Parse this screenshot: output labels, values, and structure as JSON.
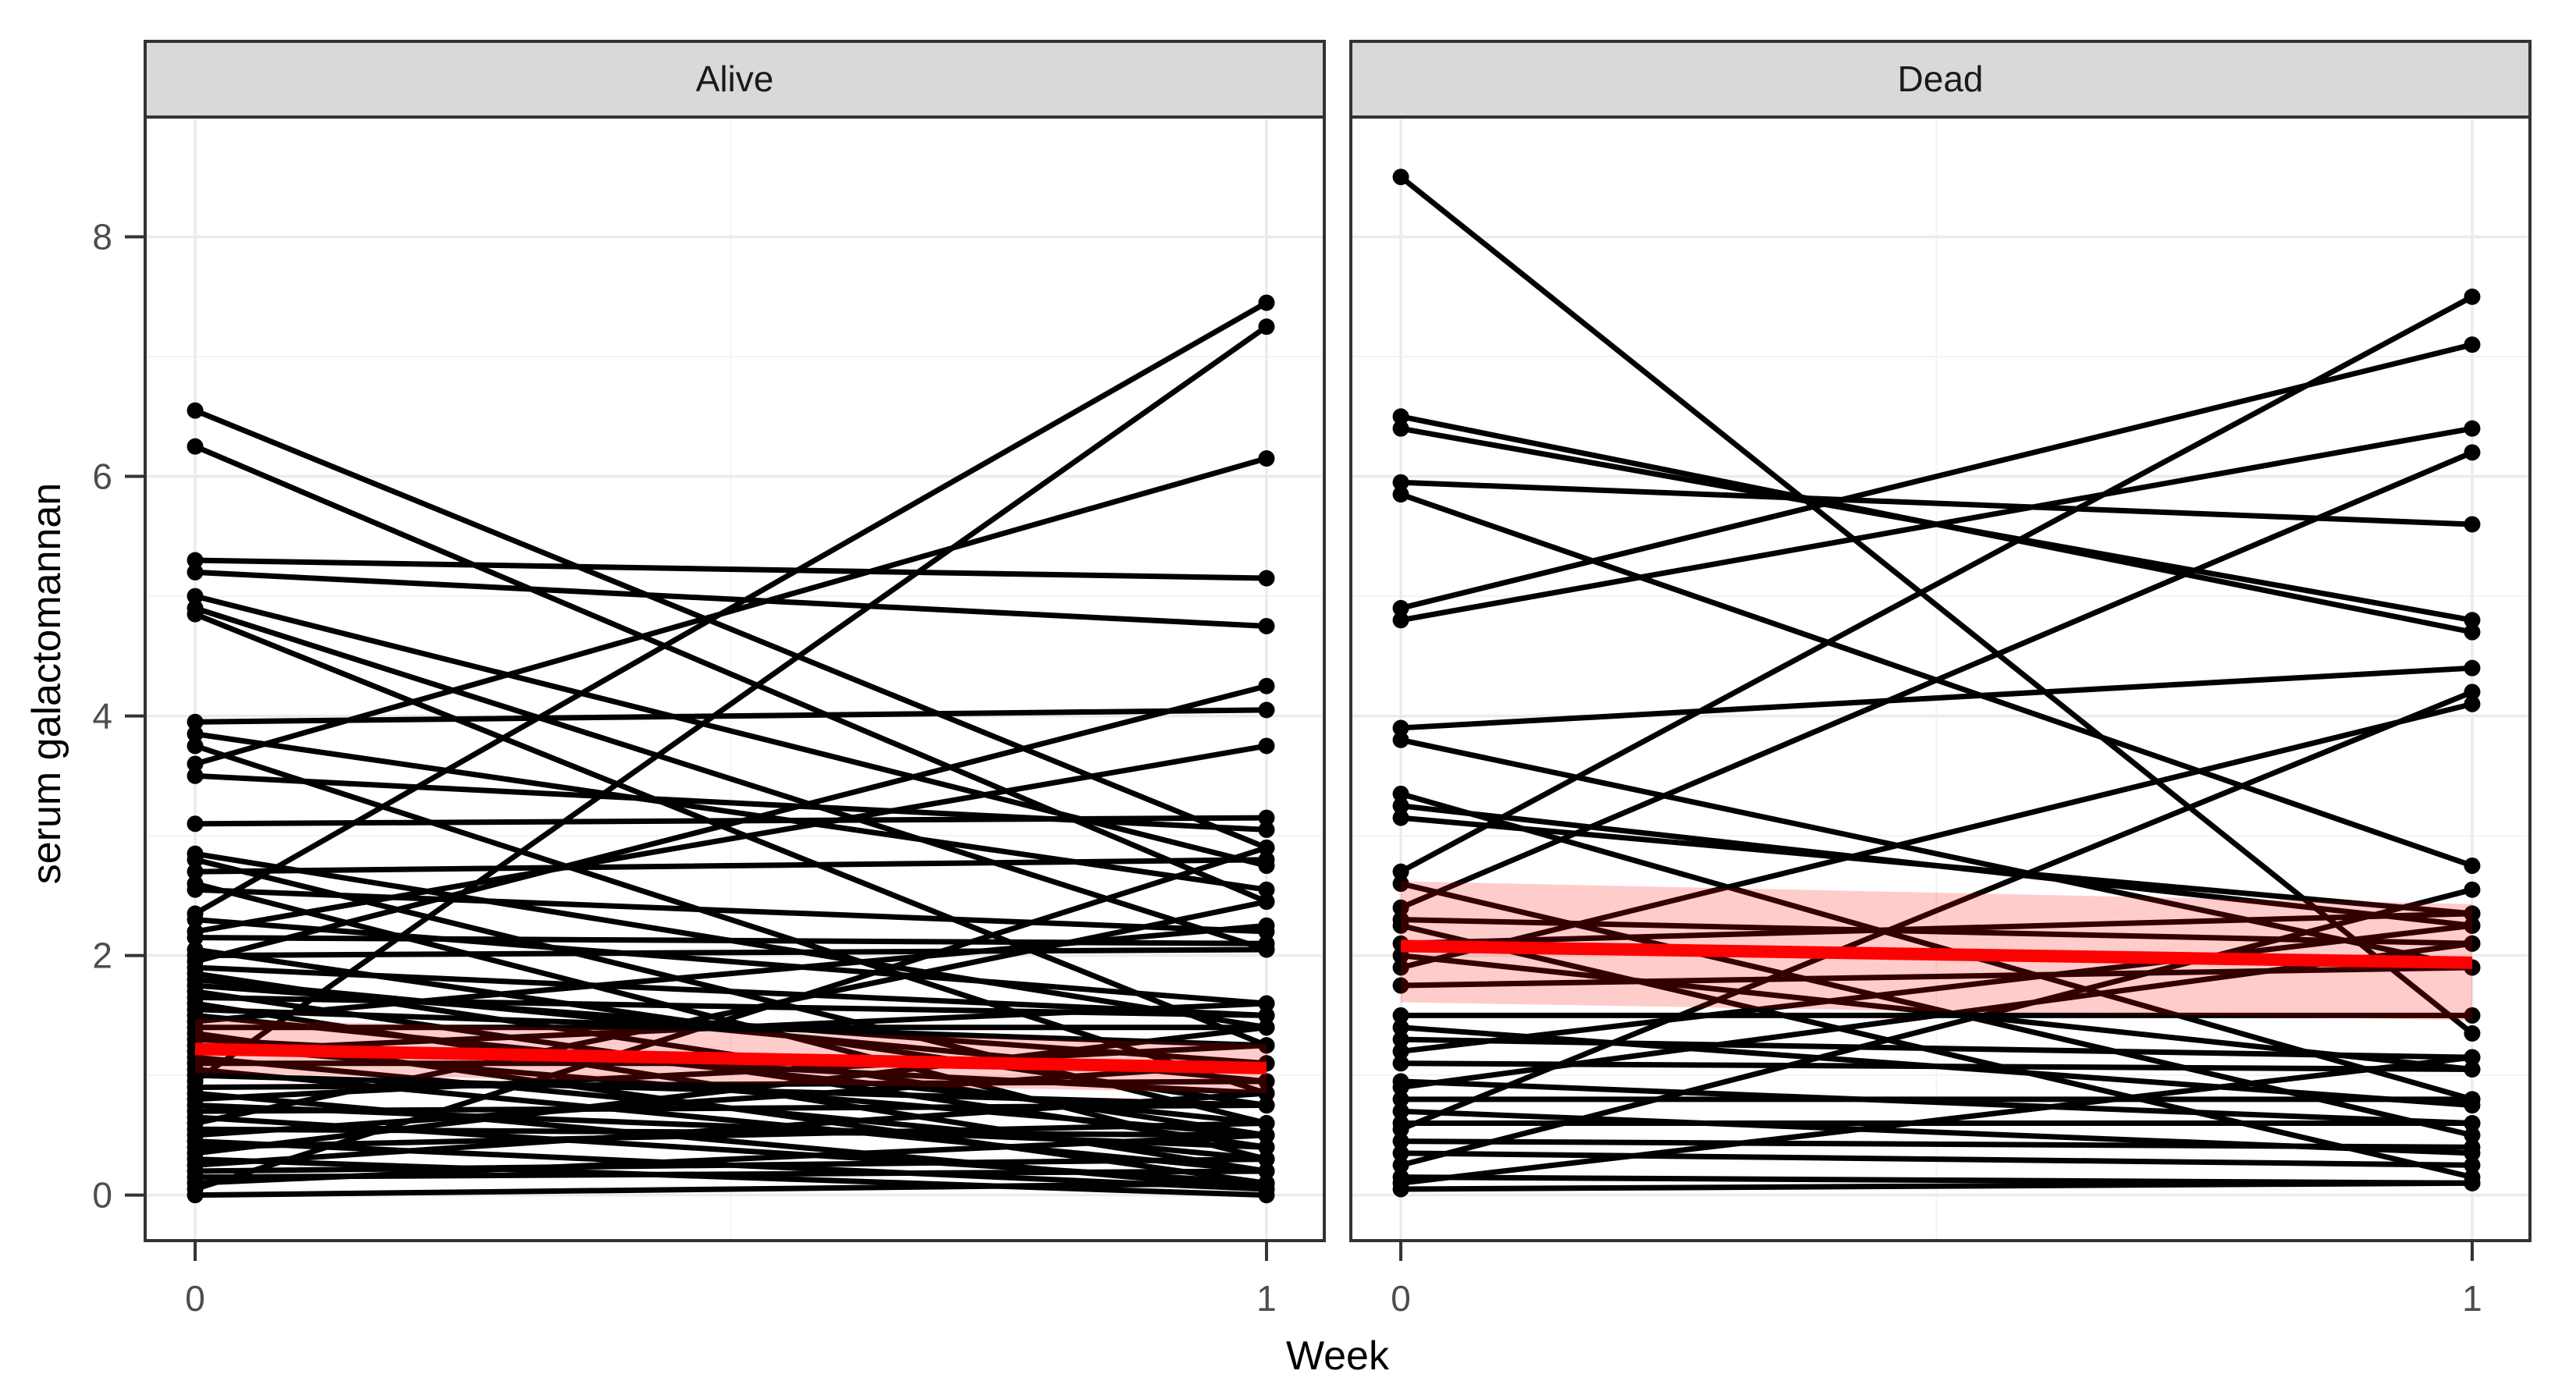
{
  "figure": {
    "background": "#FFFFFF"
  },
  "facets": [
    {
      "label": "Alive"
    },
    {
      "label": "Dead"
    }
  ],
  "axes": {
    "x_title": "Week",
    "y_title": "serum galactomannan",
    "x_tick_labels": [
      "0",
      "1"
    ],
    "y_tick_labels": [
      "0",
      "2",
      "4",
      "6",
      "8"
    ]
  },
  "chart_data": {
    "type": "line",
    "subtype": "paired-spaghetti-with-smoother",
    "title": "",
    "xlabel": "Week",
    "ylabel": "serum galactomannan",
    "x": [
      0,
      1
    ],
    "x_ticks": [
      0,
      1
    ],
    "y_ticks": [
      0,
      2,
      4,
      6,
      8
    ],
    "y_minor_ticks": [
      1,
      3,
      5,
      7
    ],
    "x_minor_ticks": [
      0.5
    ],
    "ylim": [
      -0.38,
      9.0
    ],
    "grid": true,
    "legend": false,
    "colors": {
      "line": "#000000",
      "point": "#000000",
      "smooth_line": "#FF0000",
      "ribbon": "rgba(255,0,0,0.2)",
      "strip_bg": "#D9D9D9",
      "panel_border": "#333333",
      "grid_major": "#EBEBEB",
      "grid_minor": "#F3F3F3",
      "tick_text": "#4D4D4D"
    },
    "facet_panels": [
      {
        "label": "Alive",
        "segments": [
          [
            6.55,
            2.9
          ],
          [
            6.25,
            2.45
          ],
          [
            5.3,
            5.15
          ],
          [
            5.2,
            4.75
          ],
          [
            5.0,
            2.75
          ],
          [
            4.9,
            2.05
          ],
          [
            4.85,
            1.25
          ],
          [
            3.95,
            4.05
          ],
          [
            3.85,
            2.55
          ],
          [
            3.75,
            0.85
          ],
          [
            3.6,
            6.15
          ],
          [
            3.5,
            3.05
          ],
          [
            3.1,
            3.15
          ],
          [
            2.85,
            1.4
          ],
          [
            2.8,
            0.6
          ],
          [
            2.7,
            2.8
          ],
          [
            2.6,
            0.3
          ],
          [
            2.55,
            2.2
          ],
          [
            2.35,
            7.45
          ],
          [
            2.3,
            1.6
          ],
          [
            2.2,
            3.75
          ],
          [
            2.15,
            2.1
          ],
          [
            2.05,
            0.75
          ],
          [
            2.0,
            2.05
          ],
          [
            1.95,
            4.25
          ],
          [
            1.9,
            1.5
          ],
          [
            1.85,
            0.5
          ],
          [
            1.8,
            0.95
          ],
          [
            1.75,
            1.1
          ],
          [
            1.7,
            0.4
          ],
          [
            1.65,
            1.5
          ],
          [
            1.6,
            0.2
          ],
          [
            1.55,
            1.25
          ],
          [
            1.5,
            0.6
          ],
          [
            1.45,
            2.25
          ],
          [
            1.4,
            1.4
          ],
          [
            1.35,
            0.1
          ],
          [
            1.3,
            0.85
          ],
          [
            1.25,
            0.5
          ],
          [
            1.2,
            1.6
          ],
          [
            1.15,
            0.3
          ],
          [
            1.1,
            1.1
          ],
          [
            1.05,
            0.2
          ],
          [
            1.0,
            0.75
          ],
          [
            0.95,
            7.25
          ],
          [
            0.9,
            0.95
          ],
          [
            0.85,
            0.05
          ],
          [
            0.8,
            1.25
          ],
          [
            0.75,
            0.4
          ],
          [
            0.7,
            0.75
          ],
          [
            0.65,
            0.1
          ],
          [
            0.6,
            2.45
          ],
          [
            0.55,
            0.5
          ],
          [
            0.5,
            1.1
          ],
          [
            0.45,
            0.05
          ],
          [
            0.4,
            0.6
          ],
          [
            0.35,
            1.4
          ],
          [
            0.3,
            0.0
          ],
          [
            0.25,
            0.85
          ],
          [
            0.2,
            0.3
          ],
          [
            0.15,
            0.2
          ],
          [
            0.1,
            0.5
          ],
          [
            0.05,
            2.9
          ],
          [
            0.0,
            0.1
          ]
        ],
        "smooth": {
          "line": [
            1.22,
            1.06
          ],
          "ribbon_upper": [
            1.47,
            1.26
          ],
          "ribbon_lower": [
            1.02,
            0.85
          ]
        }
      },
      {
        "label": "Dead",
        "segments": [
          [
            8.5,
            1.35
          ],
          [
            6.5,
            4.7
          ],
          [
            6.4,
            4.8
          ],
          [
            5.95,
            5.6
          ],
          [
            5.85,
            2.75
          ],
          [
            4.9,
            7.1
          ],
          [
            4.8,
            6.4
          ],
          [
            3.9,
            4.4
          ],
          [
            3.8,
            1.9
          ],
          [
            3.35,
            0.8
          ],
          [
            3.25,
            2.25
          ],
          [
            3.15,
            2.35
          ],
          [
            2.7,
            7.5
          ],
          [
            2.6,
            0.5
          ],
          [
            2.4,
            6.2
          ],
          [
            2.3,
            2.1
          ],
          [
            2.25,
            0.15
          ],
          [
            2.1,
            2.35
          ],
          [
            2.0,
            1.05
          ],
          [
            1.9,
            4.1
          ],
          [
            1.75,
            1.9
          ],
          [
            1.5,
            1.5
          ],
          [
            1.4,
            0.75
          ],
          [
            1.3,
            1.15
          ],
          [
            1.2,
            2.25
          ],
          [
            1.1,
            1.05
          ],
          [
            0.95,
            0.6
          ],
          [
            0.9,
            2.1
          ],
          [
            0.8,
            0.8
          ],
          [
            0.7,
            0.35
          ],
          [
            0.6,
            0.6
          ],
          [
            0.55,
            4.2
          ],
          [
            0.45,
            0.4
          ],
          [
            0.35,
            0.25
          ],
          [
            0.25,
            2.55
          ],
          [
            0.15,
            0.1
          ],
          [
            0.1,
            1.15
          ],
          [
            0.05,
            0.1
          ]
        ],
        "smooth": {
          "line": [
            2.08,
            1.94
          ],
          "ribbon_upper": [
            2.62,
            2.43
          ],
          "ribbon_lower": [
            1.61,
            1.46
          ]
        }
      }
    ]
  }
}
